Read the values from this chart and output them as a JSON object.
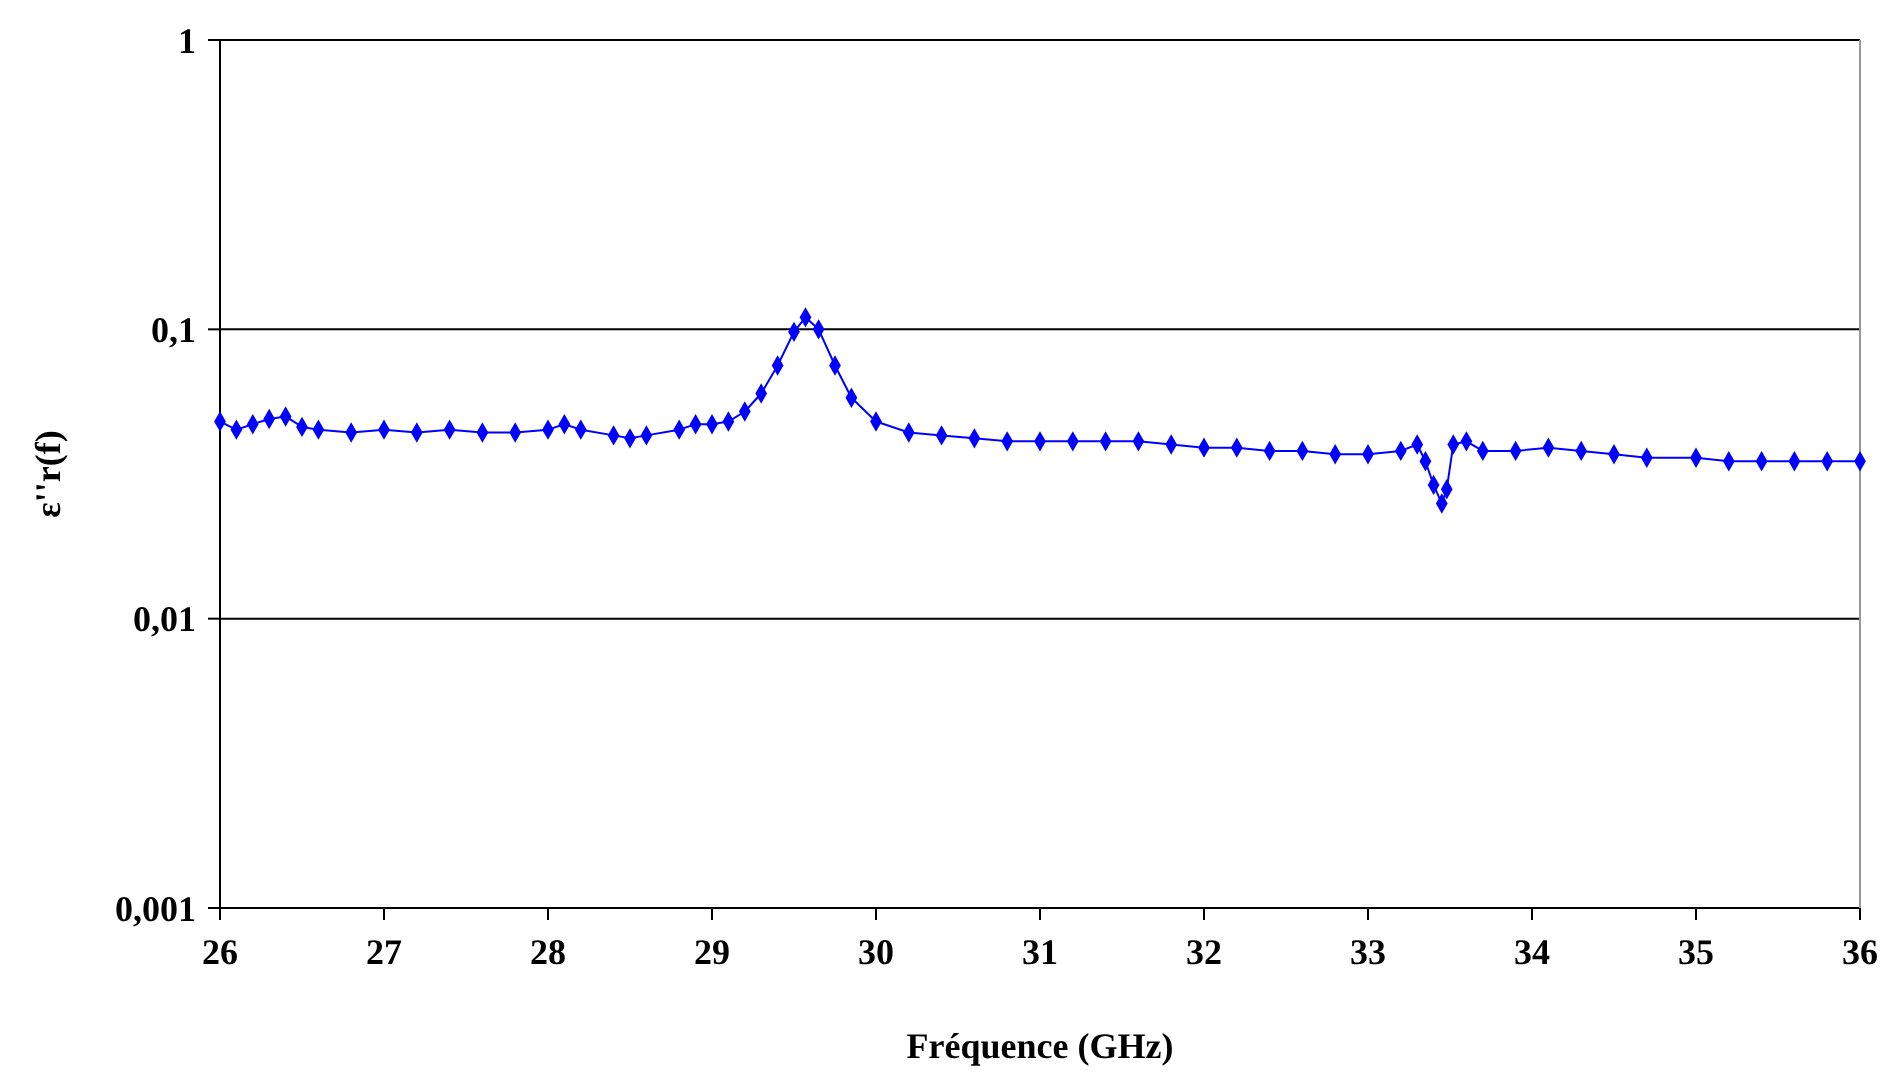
{
  "chart_data": {
    "type": "line",
    "xlabel": "Fréquence (GHz)",
    "ylabel": "ε''r(f)",
    "log": "y",
    "grid": "y",
    "marker": "diamond",
    "line_style": "solid",
    "xlim": [
      26,
      36
    ],
    "xticks": [
      26,
      27,
      28,
      29,
      30,
      31,
      32,
      33,
      34,
      35,
      36
    ],
    "ylim": [
      0.001,
      1
    ],
    "yticks": [
      {
        "value": 0.001,
        "label": "0,001"
      },
      {
        "value": 0.01,
        "label": "0,01"
      },
      {
        "value": 0.1,
        "label": "0,1"
      },
      1
    ],
    "series": [
      {
        "color": "#0000ff",
        "x": [
          26.0,
          26.1,
          26.2,
          26.3,
          26.4,
          26.5,
          26.6,
          26.8,
          27.0,
          27.2,
          27.4,
          27.6,
          27.8,
          28.0,
          28.1,
          28.2,
          28.4,
          28.5,
          28.6,
          28.8,
          28.9,
          29.0,
          29.1,
          29.2,
          29.3,
          29.4,
          29.5,
          29.57,
          29.65,
          29.75,
          29.85,
          30.0,
          30.2,
          30.4,
          30.6,
          30.8,
          31.0,
          31.2,
          31.4,
          31.6,
          31.8,
          32.0,
          32.2,
          32.4,
          32.6,
          32.8,
          33.0,
          33.2,
          33.3,
          33.35,
          33.4,
          33.45,
          33.48,
          33.52,
          33.6,
          33.7,
          33.9,
          34.1,
          34.3,
          34.5,
          34.7,
          35.0,
          35.2,
          35.4,
          35.6,
          35.8,
          36.0
        ],
        "values": [
          0.048,
          0.045,
          0.047,
          0.049,
          0.05,
          0.046,
          0.045,
          0.044,
          0.045,
          0.044,
          0.045,
          0.044,
          0.044,
          0.045,
          0.047,
          0.045,
          0.043,
          0.042,
          0.043,
          0.045,
          0.047,
          0.047,
          0.048,
          0.052,
          0.06,
          0.075,
          0.098,
          0.11,
          0.1,
          0.075,
          0.058,
          0.048,
          0.044,
          0.043,
          0.042,
          0.041,
          0.041,
          0.041,
          0.041,
          0.041,
          0.04,
          0.039,
          0.039,
          0.038,
          0.038,
          0.037,
          0.037,
          0.038,
          0.04,
          0.035,
          0.029,
          0.025,
          0.028,
          0.04,
          0.041,
          0.038,
          0.038,
          0.039,
          0.038,
          0.037,
          0.036,
          0.036,
          0.035,
          0.035,
          0.035,
          0.035,
          0.035
        ]
      }
    ]
  }
}
